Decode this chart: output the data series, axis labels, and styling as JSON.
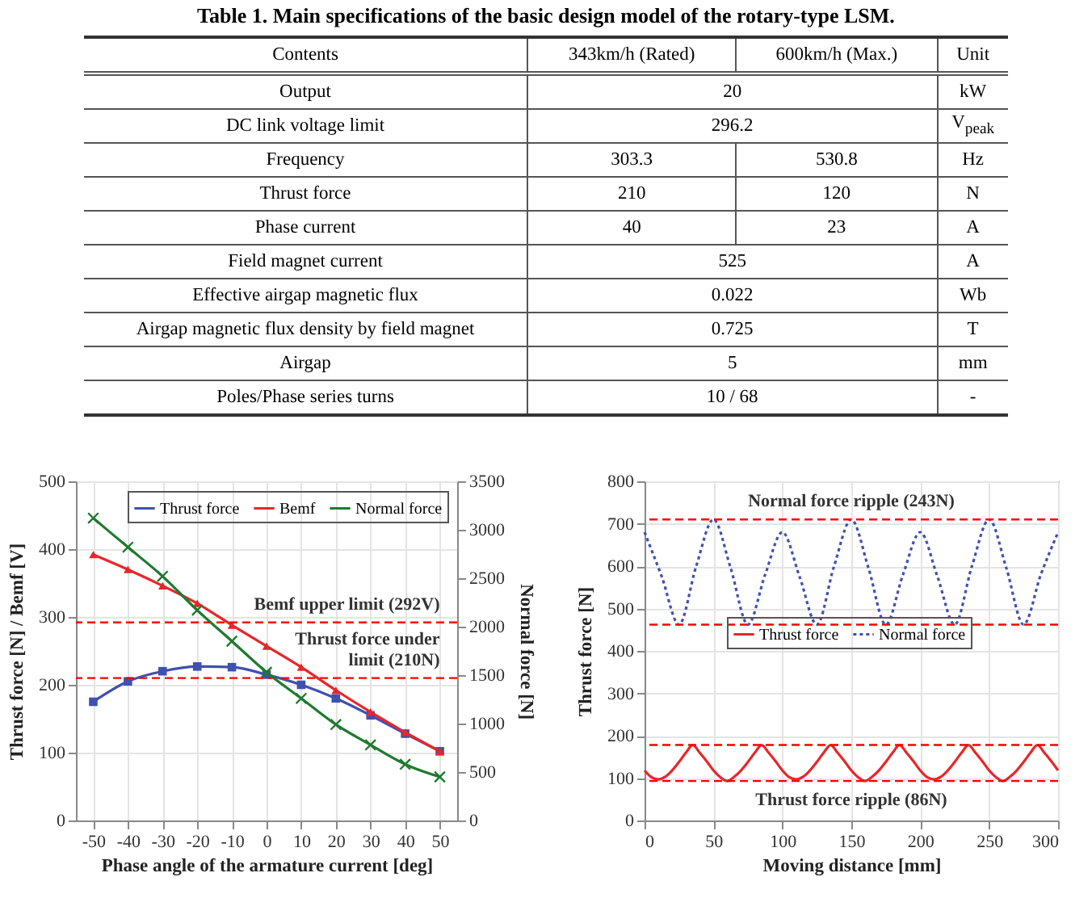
{
  "chart_data": [
    {
      "type": "other",
      "title": "Table 1. Main specifications of the basic design model of the rotary-type LSM.",
      "annotations": [
        "Contents",
        "343km/h (Rated)",
        "600km/h (Max.)",
        "Unit",
        "Output",
        "20",
        "kW",
        "DC link voltage limit",
        "296.2",
        "V$_{peak}$",
        "Frequency",
        "303.3",
        "530.8",
        "Hz",
        "Thrust force",
        "210",
        "120",
        "N",
        "Phase current",
        "40",
        "23",
        "A",
        "Field magnet current",
        "525",
        "A",
        "Effective airgap magnetic flux",
        "0.022",
        "Wb",
        "Airgap magnetic flux density by field magnet",
        "0.725",
        "T",
        "Airgap",
        "5",
        "mm",
        "Poles/Phase series turns",
        "10 / 68",
        "-"
      ]
    },
    {
      "type": "line",
      "categories": [
        "-50",
        "-40",
        "-30",
        "-20",
        "-10",
        "0",
        "10",
        "20",
        "30",
        "40",
        "50"
      ],
      "series": [
        {
          "name": "Thrust force",
          "color": "#4050b0",
          "marker": "square",
          "values": [
            175,
            205,
            220,
            227,
            226,
            215,
            200,
            180,
            155,
            128,
            102
          ]
        },
        {
          "name": "Bemf",
          "color": "#e8262a",
          "marker": "triangle",
          "values": [
            392,
            370,
            346,
            320,
            288,
            257,
            226,
            192,
            160,
            130,
            102
          ]
        },
        {
          "name": "Normal force",
          "color": "#1e7a2e",
          "marker": "cross",
          "axis": "y2",
          "values": [
            3120,
            2820,
            2520,
            2170,
            1850,
            1530,
            1260,
            990,
            780,
            580,
            450
          ]
        }
      ],
      "xlabel": "Phase angle of the armature current [deg]",
      "ylabel": "Thrust force [N] / Bemf [V]",
      "y2label": "Normal force [N]",
      "ylim": [
        0,
        500
      ],
      "yticks": [
        0,
        100,
        200,
        300,
        400,
        500
      ],
      "y2lim": [
        0,
        3500
      ],
      "y2ticks": [
        0,
        500,
        1000,
        1500,
        2000,
        2500,
        3000,
        3500
      ],
      "ref_lines": [
        {
          "axis": "y",
          "value": 292,
          "label": "Bemf upper limit (292V)",
          "color": "#ff0000",
          "line_style": "dashed"
        },
        {
          "axis": "y",
          "value": 210,
          "label": "Thrust force under limit (210N)",
          "color": "#ff0000",
          "line_style": "dashed"
        }
      ],
      "legend": "top right",
      "grid": true
    },
    {
      "type": "line",
      "series": [
        {
          "name": "Thrust force",
          "color": "#e8262a",
          "line_style": "solid",
          "x": [
            0,
            5,
            10,
            15,
            20,
            25,
            30,
            35,
            40,
            45,
            50,
            55,
            60,
            65,
            70,
            75,
            80,
            85,
            90,
            95,
            100,
            105,
            110,
            115,
            120,
            125,
            130,
            135,
            140,
            145,
            150,
            155,
            160,
            165,
            170,
            175,
            180,
            185,
            190,
            195,
            200,
            205,
            210,
            215,
            220,
            225,
            230,
            235,
            240,
            245,
            250,
            255,
            260,
            265,
            270,
            275,
            280,
            285,
            290,
            295,
            300
          ],
          "values": [
            118,
            102,
            97,
            103,
            118,
            138,
            160,
            178,
            160,
            140,
            118,
            102,
            93,
            103,
            118,
            138,
            160,
            178,
            160,
            140,
            118,
            102,
            97,
            103,
            118,
            138,
            160,
            178,
            160,
            140,
            118,
            102,
            93,
            103,
            118,
            138,
            160,
            178,
            160,
            140,
            118,
            102,
            97,
            103,
            118,
            138,
            160,
            178,
            160,
            140,
            118,
            102,
            93,
            103,
            118,
            138,
            160,
            178,
            160,
            140,
            118
          ]
        },
        {
          "name": "Normal force",
          "color": "#4050b0",
          "line_style": "dotted",
          "x": [
            0,
            12.5,
            25,
            37.5,
            50,
            62.5,
            75,
            87.5,
            100,
            112.5,
            125,
            137.5,
            150,
            162.5,
            175,
            187.5,
            200,
            212.5,
            225,
            237.5,
            250,
            262.5,
            275,
            287.5,
            300
          ],
          "values": [
            680,
            575,
            462,
            600,
            710,
            595,
            462,
            580,
            680,
            575,
            462,
            600,
            710,
            595,
            462,
            580,
            680,
            575,
            462,
            600,
            710,
            595,
            462,
            580,
            680
          ]
        }
      ],
      "xlabel": "Moving distance [mm]",
      "ylabel": "Thrust force [N]",
      "xlim": [
        0,
        300
      ],
      "xticks": [
        0,
        50,
        100,
        150,
        200,
        250,
        300
      ],
      "ylim": [
        0,
        800
      ],
      "yticks": [
        0,
        100,
        200,
        300,
        400,
        500,
        600,
        700,
        800
      ],
      "ref_lines": [
        {
          "axis": "y",
          "value": 710,
          "label": "Normal force ripple (243N)",
          "color": "#ff0000",
          "line_style": "dashed"
        },
        {
          "axis": "y",
          "value": 462,
          "color": "#ff0000",
          "line_style": "dashed"
        },
        {
          "axis": "y",
          "value": 178,
          "color": "#ff0000",
          "line_style": "dashed"
        },
        {
          "axis": "y",
          "value": 93,
          "label": "Thrust force ripple (86N)",
          "color": "#ff0000",
          "line_style": "dashed"
        }
      ],
      "legend": "right",
      "grid": true
    }
  ]
}
